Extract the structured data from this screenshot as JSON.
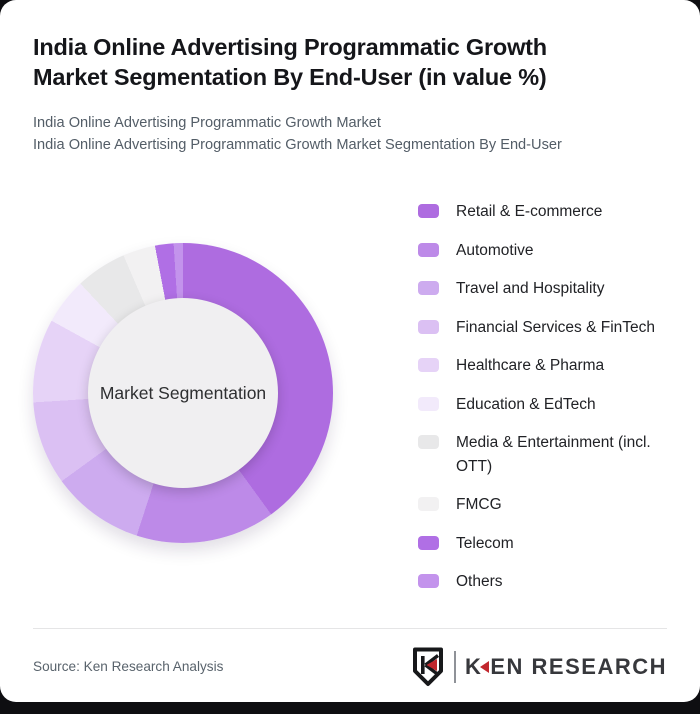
{
  "header": {
    "title_lines": [
      "India Online Advertising Programmatic Growth",
      "Market Segmentation By End-User (in value %)"
    ],
    "subtitle_lines": [
      "India Online Advertising Programmatic Growth Market",
      "India Online Advertising Programmatic Growth Market Segmentation By End-User"
    ]
  },
  "chart_data": {
    "type": "pie",
    "variant": "donut",
    "title": "India Online Advertising Programmatic Growth Market Segmentation By End-User (in value %)",
    "center_label": "Market Segmentation",
    "unit": "value %",
    "legend_position": "right",
    "start_angle_deg": 0,
    "series": [
      {
        "name": "Retail & E-commerce",
        "value": 40,
        "color": "#ae6ce0"
      },
      {
        "name": "Automotive",
        "value": 15,
        "color": "#bd8ae8"
      },
      {
        "name": "Travel and Hospitality",
        "value": 10,
        "color": "#cdabef"
      },
      {
        "name": "Financial Services & FinTech",
        "value": 9,
        "color": "#dbc0f3"
      },
      {
        "name": "Healthcare & Pharma",
        "value": 9,
        "color": "#e6d3f7"
      },
      {
        "name": "Education & EdTech",
        "value": 5,
        "color": "#f2eafb"
      },
      {
        "name": "Media & Entertainment (incl. OTT)",
        "value": 5.5,
        "color": "#e8e8e9"
      },
      {
        "name": "FMCG",
        "value": 3.5,
        "color": "#f2f1f2"
      },
      {
        "name": "Telecom",
        "value": 2,
        "color": "#b06fe5"
      },
      {
        "name": "Others",
        "value": 1,
        "color": "#c393ec"
      }
    ]
  },
  "footer": {
    "source": "Source: Ken Research Analysis",
    "logo": {
      "shield_letter": "K",
      "brand_prefix": "K",
      "brand_suffix": "EN RESEARCH",
      "accent_color": "#c1272d"
    }
  }
}
